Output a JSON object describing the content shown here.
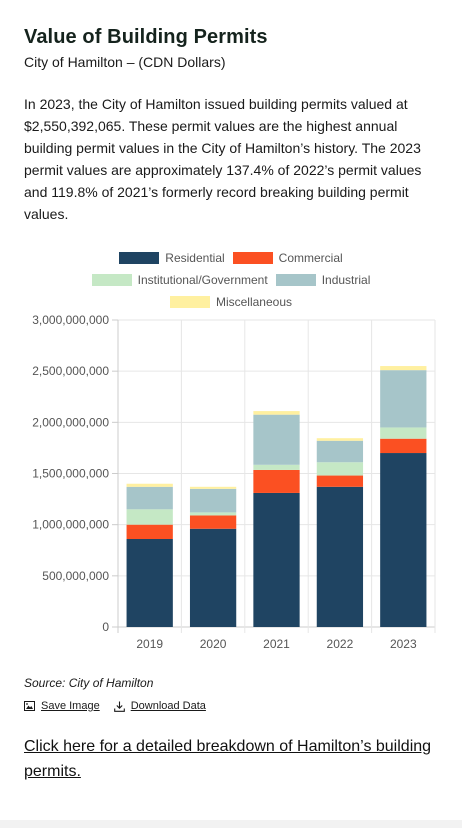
{
  "header": {
    "title": "Value of Building Permits",
    "subtitle": "City of Hamilton – (CDN Dollars)",
    "description": "In 2023, the City of Hamilton issued building permits valued at $2,550,392,065. These permit values are the highest annual building permit values in the City of Hamilton’s history. The 2023 permit values are approximately 137.4% of 2022’s permit values and 119.8% of 2021’s formerly record breaking building permit values."
  },
  "chart_data": {
    "type": "bar",
    "stacked": true,
    "categories": [
      "2019",
      "2020",
      "2021",
      "2022",
      "2023"
    ],
    "series": [
      {
        "name": "Residential",
        "color": "#1f4462",
        "values": [
          860000000,
          960000000,
          1310000000,
          1370000000,
          1700000000
        ]
      },
      {
        "name": "Commercial",
        "color": "#fb5022",
        "values": [
          140000000,
          130000000,
          225000000,
          110000000,
          140000000
        ]
      },
      {
        "name": "Institutional/Government",
        "color": "#c5e8c5",
        "values": [
          150000000,
          30000000,
          50000000,
          130000000,
          110000000
        ]
      },
      {
        "name": "Industrial",
        "color": "#a6c5c9",
        "values": [
          220000000,
          230000000,
          490000000,
          210000000,
          560000000
        ]
      },
      {
        "name": "Miscellaneous",
        "color": "#fff0a0",
        "values": [
          30000000,
          20000000,
          35000000,
          25000000,
          40000000
        ]
      }
    ],
    "ylim": [
      0,
      3000000000
    ],
    "yticks": [
      "0",
      "500,000,000",
      "1,000,000,000",
      "1,500,000,000",
      "2,000,000,000",
      "2,500,000,000",
      "3,000,000,000"
    ],
    "grid": true,
    "legend_position": "top"
  },
  "footer": {
    "source": "Source: City of Hamilton",
    "save_image": "Save Image",
    "download_data": "Download Data",
    "breakdown_link": "Click here for a detailed breakdown of Hamilton’s building permits."
  }
}
